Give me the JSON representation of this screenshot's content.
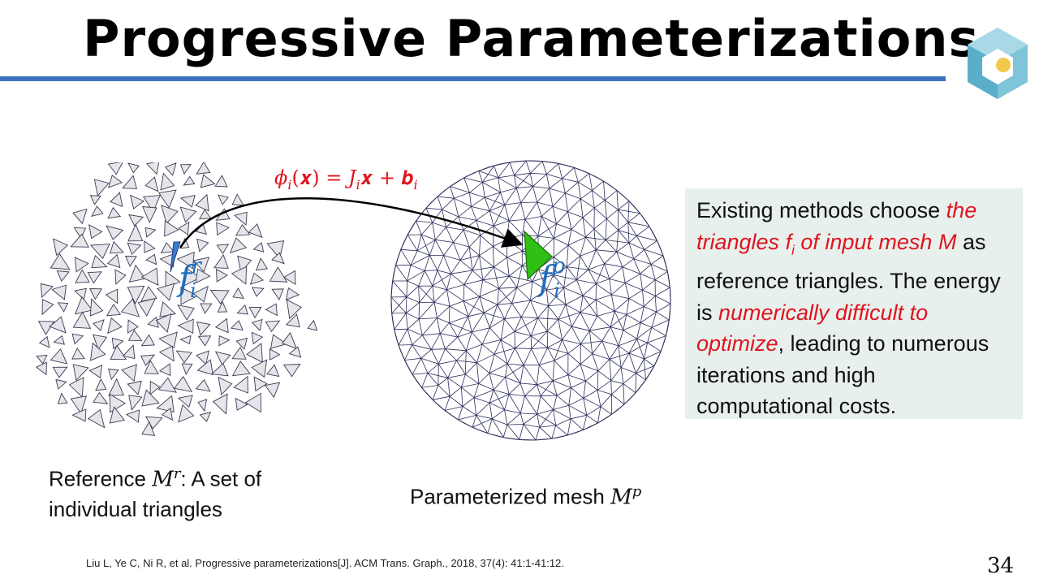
{
  "slide": {
    "title": "Progressive Parameterizations",
    "page_number": "34",
    "reference": "Liu L, Ye C, Ni R, et al. Progressive parameterizations[J]. ACM Trans. Graph., 2018, 37(4): 41:1-41:12."
  },
  "figure": {
    "formula": {
      "phi": "ϕ",
      "sub_i": "i",
      "arg": "(𝒙) = ",
      "J": "J",
      "x": "𝒙 + ",
      "b": "𝒃"
    },
    "ref_label": {
      "f": "f",
      "sup": "r",
      "sub": "i"
    },
    "param_label": {
      "f": "f",
      "sup": "p",
      "sub": "i"
    },
    "colors": {
      "arrow": "#000000",
      "ref_triangle": "#3a7bd5",
      "param_triangle": "#2fc015",
      "label": "#1f6dbf",
      "mesh": "#2a2d5a"
    }
  },
  "captions": {
    "left_a": "Reference ",
    "left_M": "M",
    "left_sup": "r",
    "left_b": ": A set of",
    "left_c": "individual triangles",
    "right_a": "Parameterized mesh ",
    "right_M": "M",
    "right_sup": "p"
  },
  "note": {
    "t1": "Existing methods choose ",
    "r1": "the triangles ",
    "r1_f": "f",
    "r1_sub": "i",
    "r2": " of input mesh ",
    "r2_M": "M",
    "t2": " as reference triangles. The energy is ",
    "r3": "numerically difficult to optimize",
    "t3": ", leading to numerous iterations and high computational costs."
  }
}
